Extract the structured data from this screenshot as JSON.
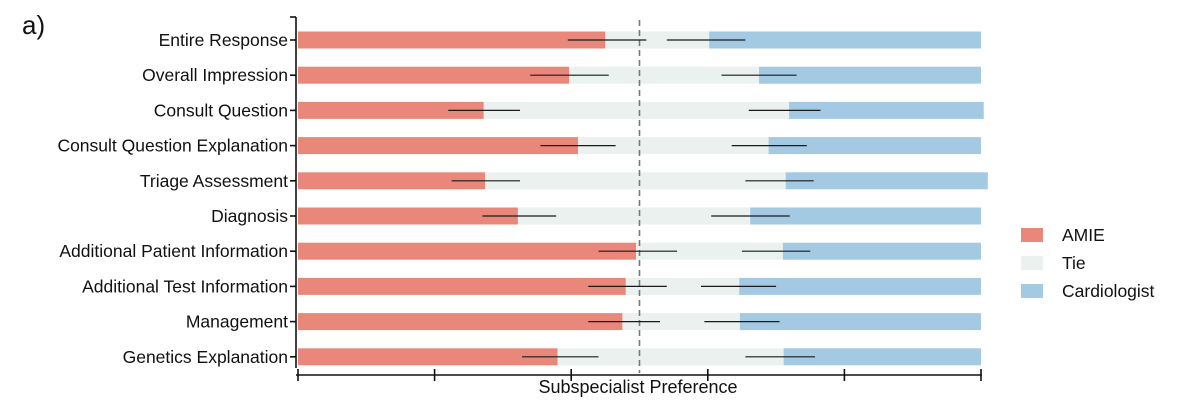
{
  "panel_label": "a)",
  "chart_data": {
    "type": "bar",
    "stacked": true,
    "orientation": "horizontal",
    "categories": [
      "Entire Response",
      "Overall Impression",
      "Consult Question",
      "Consult Question Explanation",
      "Triage Assessment",
      "Diagnosis",
      "Additional Patient Information",
      "Additional Test Information",
      "Management",
      "Genetics Explanation"
    ],
    "series": [
      {
        "name": "AMIE",
        "color": "#E9887A",
        "values": [
          0.45,
          0.397,
          0.272,
          0.41,
          0.274,
          0.322,
          0.495,
          0.48,
          0.475,
          0.38
        ]
      },
      {
        "name": "Tie",
        "color": "#EBF1EF",
        "values": [
          0.152,
          0.278,
          0.447,
          0.279,
          0.44,
          0.34,
          0.215,
          0.166,
          0.172,
          0.331
        ]
      },
      {
        "name": "Cardiologist",
        "color": "#A4CAE3",
        "values": [
          0.398,
          0.325,
          0.285,
          0.311,
          0.296,
          0.338,
          0.29,
          0.354,
          0.353,
          0.289
        ]
      }
    ],
    "error_bars": [
      {
        "amie": [
          0.395,
          0.51
        ],
        "cardiologist": [
          0.54,
          0.655
        ]
      },
      {
        "amie": [
          0.34,
          0.455
        ],
        "cardiologist": [
          0.62,
          0.73
        ]
      },
      {
        "amie": [
          0.22,
          0.325
        ],
        "cardiologist": [
          0.66,
          0.765
        ]
      },
      {
        "amie": [
          0.355,
          0.465
        ],
        "cardiologist": [
          0.635,
          0.745
        ]
      },
      {
        "amie": [
          0.225,
          0.325
        ],
        "cardiologist": [
          0.655,
          0.755
        ]
      },
      {
        "amie": [
          0.27,
          0.378
        ],
        "cardiologist": [
          0.605,
          0.72
        ]
      },
      {
        "amie": [
          0.44,
          0.555
        ],
        "cardiologist": [
          0.65,
          0.75
        ]
      },
      {
        "amie": [
          0.425,
          0.54
        ],
        "cardiologist": [
          0.59,
          0.7
        ]
      },
      {
        "amie": [
          0.425,
          0.53
        ],
        "cardiologist": [
          0.595,
          0.705
        ]
      },
      {
        "amie": [
          0.328,
          0.44
        ],
        "cardiologist": [
          0.655,
          0.757
        ]
      }
    ],
    "reference_line": 0.5,
    "xlim": [
      0,
      1
    ],
    "xlabel": "Subspecialist Preference",
    "ylabel": "",
    "title": "",
    "legend_position": "right",
    "grid": false
  }
}
